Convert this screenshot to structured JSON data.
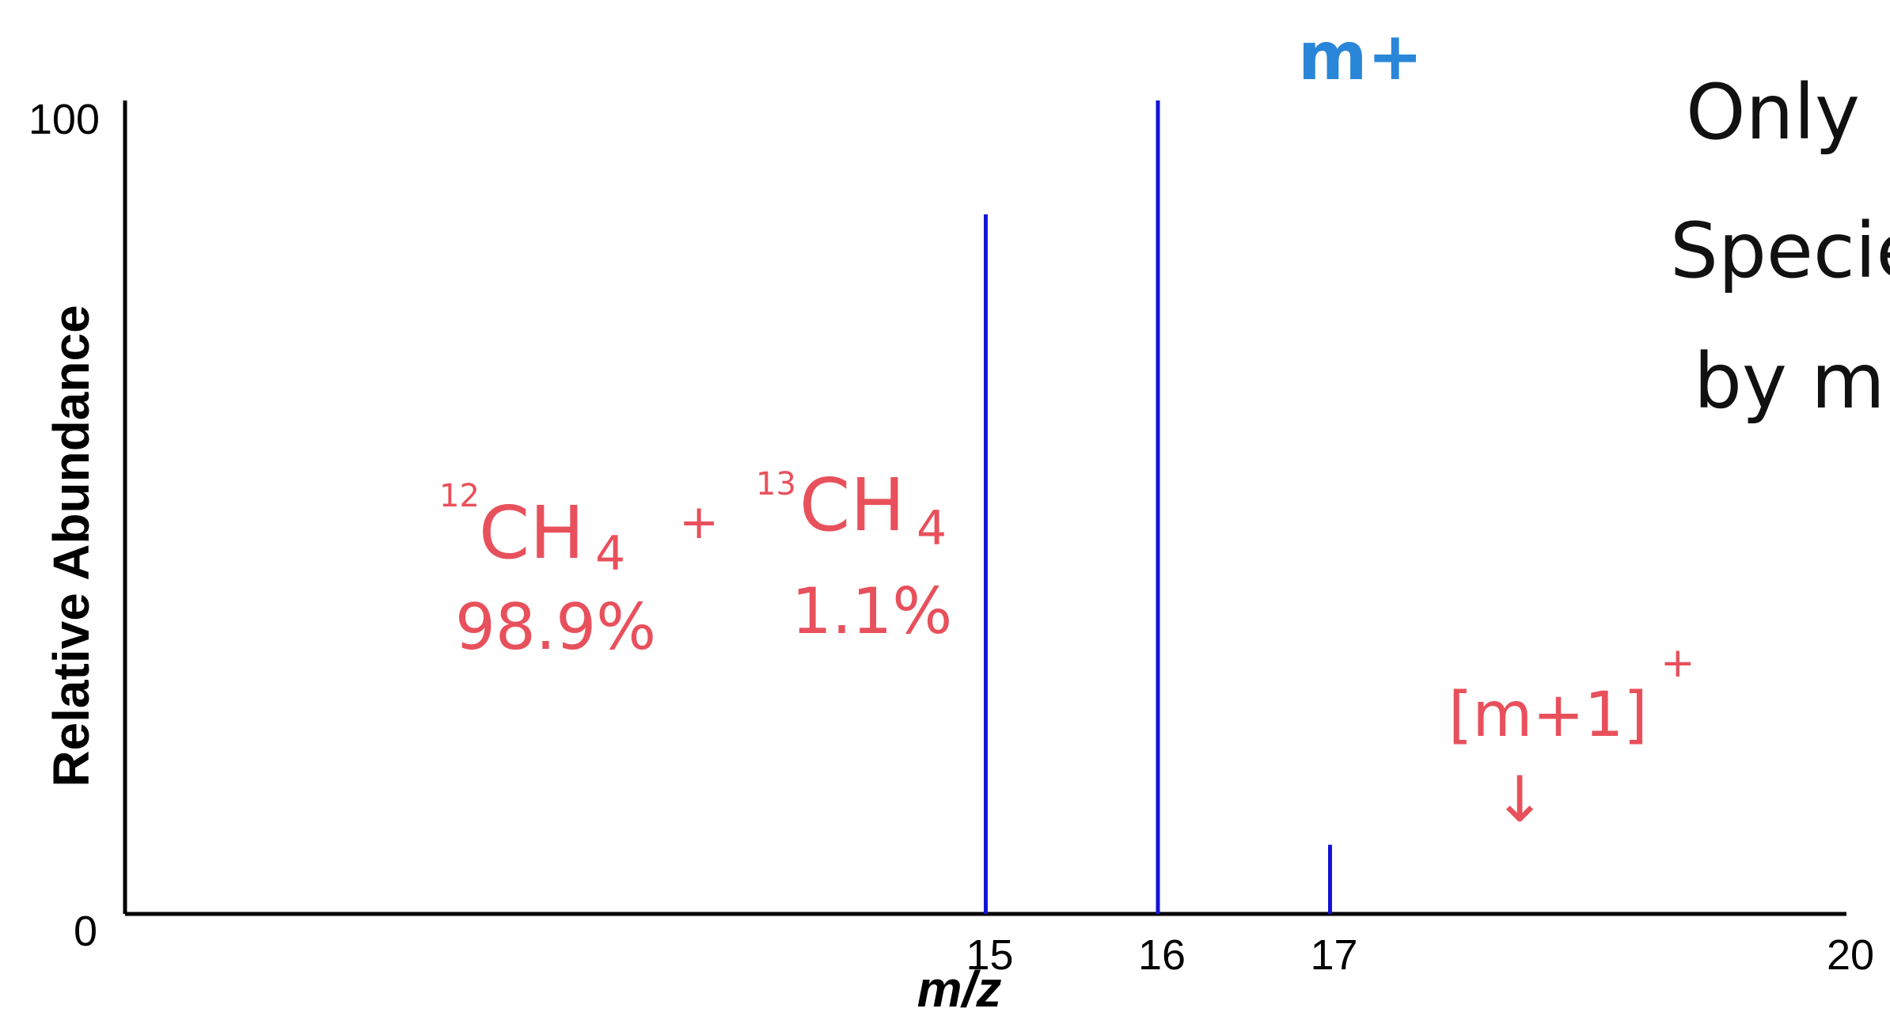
{
  "colors": {
    "axis": "#000000",
    "peak": "#1414d4",
    "annotation_blue": "#2a86d8",
    "annotation_red": "#e8505b",
    "handwriting_black": "#111111"
  },
  "chart_data": {
    "type": "bar",
    "style": "stick",
    "xlabel": "m/z",
    "ylabel": "Relative Abundance",
    "xlim": [
      10,
      20
    ],
    "ylim": [
      0,
      100
    ],
    "x_ticks": [
      "15",
      "16",
      "17",
      "20"
    ],
    "y_ticks": [
      "0",
      "100"
    ],
    "x": [
      15,
      16,
      17
    ],
    "values": [
      86,
      100,
      8.5
    ],
    "grid": false,
    "annotations": {
      "molecular_ion": "m+",
      "isotope_peak_top": "[m+1]",
      "isotope_peak_sup": "+",
      "isotope_arrow": "↓",
      "species_12c": "12",
      "species_12c_formula": "CH",
      "species_12c_sub": "4",
      "species_plus": "+",
      "species_13c": "13",
      "species_13c_formula": "CH",
      "species_13c_sub": "4",
      "abundance_12c": "98.9%",
      "abundance_13c": "1.1%",
      "side_note_line1": "Only",
      "side_note_line2": "Specie",
      "side_note_line3": "by m"
    }
  }
}
